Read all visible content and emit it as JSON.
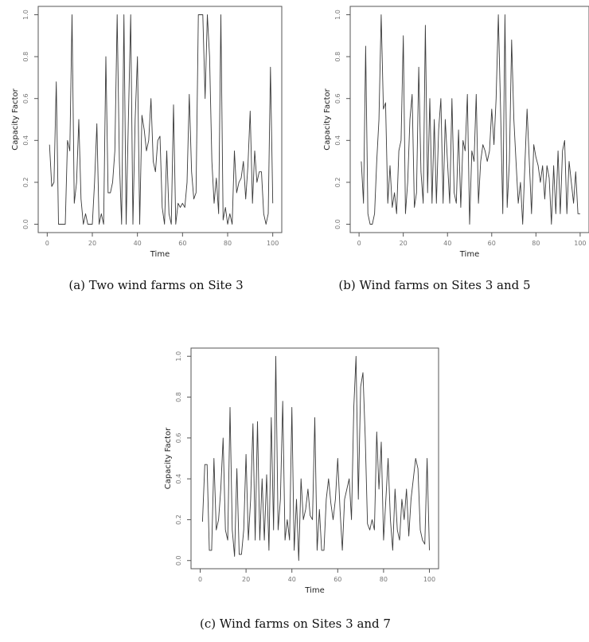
{
  "chart_data": [
    {
      "type": "line",
      "caption": "(a)  Two wind farms on Site 3",
      "xlabel": "Time",
      "ylabel": "Capacity Factor",
      "xlim": [
        0,
        100
      ],
      "ylim": [
        0,
        1
      ],
      "xticks": [
        "0",
        "20",
        "40",
        "60",
        "80",
        "100"
      ],
      "yticks": [
        "0.0",
        "0.2",
        "0.4",
        "0.6",
        "0.8",
        "1.0"
      ],
      "grid": false,
      "x": [
        1,
        2,
        3,
        4,
        5,
        6,
        7,
        8,
        9,
        10,
        11,
        12,
        13,
        14,
        15,
        16,
        17,
        18,
        19,
        20,
        21,
        22,
        23,
        24,
        25,
        26,
        27,
        28,
        29,
        30,
        31,
        32,
        33,
        34,
        35,
        36,
        37,
        38,
        39,
        40,
        41,
        42,
        43,
        44,
        45,
        46,
        47,
        48,
        49,
        50,
        51,
        52,
        53,
        54,
        55,
        56,
        57,
        58,
        59,
        60,
        61,
        62,
        63,
        64,
        65,
        66,
        67,
        68,
        69,
        70,
        71,
        72,
        73,
        74,
        75,
        76,
        77,
        78,
        79,
        80,
        81,
        82,
        83,
        84,
        85,
        86,
        87,
        88,
        89,
        90,
        91,
        92,
        93,
        94,
        95,
        96,
        97,
        98,
        99,
        100
      ],
      "y": [
        0.38,
        0.18,
        0.2,
        0.68,
        0.0,
        0.0,
        0.0,
        0.0,
        0.4,
        0.35,
        1.0,
        0.1,
        0.2,
        0.5,
        0.12,
        0.0,
        0.05,
        0.0,
        0.0,
        0.0,
        0.2,
        0.48,
        0.0,
        0.05,
        0.0,
        0.8,
        0.15,
        0.15,
        0.2,
        0.35,
        1.0,
        0.3,
        0.0,
        1.0,
        0.0,
        0.5,
        1.0,
        0.0,
        0.5,
        0.8,
        0.0,
        0.52,
        0.45,
        0.35,
        0.4,
        0.6,
        0.3,
        0.25,
        0.4,
        0.42,
        0.08,
        0.0,
        0.35,
        0.05,
        0.0,
        0.57,
        0.0,
        0.1,
        0.08,
        0.1,
        0.08,
        0.2,
        0.62,
        0.25,
        0.12,
        0.15,
        1.0,
        1.0,
        1.0,
        0.6,
        1.0,
        0.8,
        0.3,
        0.1,
        0.22,
        0.05,
        1.0,
        0.02,
        0.08,
        0.0,
        0.05,
        0.0,
        0.35,
        0.15,
        0.2,
        0.22,
        0.3,
        0.12,
        0.28,
        0.54,
        0.1,
        0.35,
        0.2,
        0.25,
        0.25,
        0.05,
        0.0,
        0.05,
        0.75,
        0.1
      ]
    },
    {
      "type": "line",
      "caption": "(b)  Wind farms on Sites 3 and 5",
      "xlabel": "Time",
      "ylabel": "Capacity Factor",
      "xlim": [
        0,
        100
      ],
      "ylim": [
        0,
        1
      ],
      "xticks": [
        "0",
        "20",
        "40",
        "60",
        "80",
        "100"
      ],
      "yticks": [
        "0.0",
        "0.2",
        "0.4",
        "0.6",
        "0.8",
        "1.0"
      ],
      "grid": false,
      "x": [
        1,
        2,
        3,
        4,
        5,
        6,
        7,
        8,
        9,
        10,
        11,
        12,
        13,
        14,
        15,
        16,
        17,
        18,
        19,
        20,
        21,
        22,
        23,
        24,
        25,
        26,
        27,
        28,
        29,
        30,
        31,
        32,
        33,
        34,
        35,
        36,
        37,
        38,
        39,
        40,
        41,
        42,
        43,
        44,
        45,
        46,
        47,
        48,
        49,
        50,
        51,
        52,
        53,
        54,
        55,
        56,
        57,
        58,
        59,
        60,
        61,
        62,
        63,
        64,
        65,
        66,
        67,
        68,
        69,
        70,
        71,
        72,
        73,
        74,
        75,
        76,
        77,
        78,
        79,
        80,
        81,
        82,
        83,
        84,
        85,
        86,
        87,
        88,
        89,
        90,
        91,
        92,
        93,
        94,
        95,
        96,
        97,
        98,
        99,
        100
      ],
      "y": [
        0.3,
        0.1,
        0.85,
        0.05,
        0.0,
        0.0,
        0.05,
        0.3,
        0.5,
        1.0,
        0.55,
        0.58,
        0.1,
        0.28,
        0.08,
        0.15,
        0.05,
        0.35,
        0.4,
        0.9,
        0.05,
        0.2,
        0.5,
        0.62,
        0.08,
        0.15,
        0.75,
        0.25,
        0.1,
        0.95,
        0.15,
        0.6,
        0.1,
        0.5,
        0.1,
        0.45,
        0.6,
        0.1,
        0.5,
        0.3,
        0.1,
        0.6,
        0.15,
        0.1,
        0.45,
        0.08,
        0.4,
        0.35,
        0.62,
        0.0,
        0.35,
        0.3,
        0.62,
        0.1,
        0.3,
        0.38,
        0.35,
        0.3,
        0.35,
        0.55,
        0.38,
        0.6,
        1.0,
        0.55,
        0.05,
        1.0,
        0.08,
        0.3,
        0.88,
        0.5,
        0.3,
        0.1,
        0.2,
        0.0,
        0.28,
        0.55,
        0.3,
        0.05,
        0.38,
        0.32,
        0.28,
        0.2,
        0.28,
        0.12,
        0.28,
        0.22,
        0.0,
        0.28,
        0.05,
        0.35,
        0.05,
        0.35,
        0.4,
        0.05,
        0.3,
        0.2,
        0.1,
        0.25,
        0.05,
        0.05
      ]
    },
    {
      "type": "line",
      "caption": "(c)  Wind farms on Sites 3 and 7",
      "xlabel": "Time",
      "ylabel": "Capacity Factor",
      "xlim": [
        0,
        100
      ],
      "ylim": [
        0,
        1
      ],
      "xticks": [
        "0",
        "20",
        "40",
        "60",
        "80",
        "100"
      ],
      "yticks": [
        "0.0",
        "0.2",
        "0.4",
        "0.6",
        "0.8",
        "1.0"
      ],
      "grid": false,
      "x": [
        1,
        2,
        3,
        4,
        5,
        6,
        7,
        8,
        9,
        10,
        11,
        12,
        13,
        14,
        15,
        16,
        17,
        18,
        19,
        20,
        21,
        22,
        23,
        24,
        25,
        26,
        27,
        28,
        29,
        30,
        31,
        32,
        33,
        34,
        35,
        36,
        37,
        38,
        39,
        40,
        41,
        42,
        43,
        44,
        45,
        46,
        47,
        48,
        49,
        50,
        51,
        52,
        53,
        54,
        55,
        56,
        57,
        58,
        59,
        60,
        61,
        62,
        63,
        64,
        65,
        66,
        67,
        68,
        69,
        70,
        71,
        72,
        73,
        74,
        75,
        76,
        77,
        78,
        79,
        80,
        81,
        82,
        83,
        84,
        85,
        86,
        87,
        88,
        89,
        90,
        91,
        92,
        93,
        94,
        95,
        96,
        97,
        98,
        99,
        100
      ],
      "y": [
        0.19,
        0.47,
        0.47,
        0.05,
        0.05,
        0.5,
        0.15,
        0.2,
        0.35,
        0.6,
        0.15,
        0.1,
        0.75,
        0.15,
        0.02,
        0.45,
        0.03,
        0.03,
        0.15,
        0.52,
        0.1,
        0.3,
        0.67,
        0.1,
        0.68,
        0.1,
        0.4,
        0.1,
        0.42,
        0.05,
        0.7,
        0.15,
        1.0,
        0.15,
        0.3,
        0.78,
        0.1,
        0.2,
        0.1,
        0.75,
        0.05,
        0.3,
        0.0,
        0.4,
        0.2,
        0.25,
        0.35,
        0.22,
        0.2,
        0.7,
        0.05,
        0.25,
        0.05,
        0.05,
        0.3,
        0.4,
        0.28,
        0.2,
        0.3,
        0.5,
        0.25,
        0.05,
        0.3,
        0.35,
        0.4,
        0.2,
        0.75,
        1.0,
        0.3,
        0.85,
        0.92,
        0.6,
        0.18,
        0.15,
        0.2,
        0.15,
        0.63,
        0.35,
        0.58,
        0.1,
        0.3,
        0.5,
        0.2,
        0.05,
        0.35,
        0.15,
        0.1,
        0.3,
        0.2,
        0.35,
        0.12,
        0.3,
        0.4,
        0.5,
        0.45,
        0.15,
        0.1,
        0.08,
        0.5,
        0.05
      ]
    }
  ]
}
